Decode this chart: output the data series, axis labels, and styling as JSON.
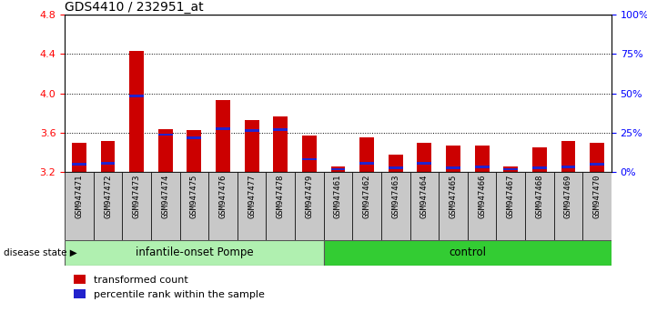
{
  "title": "GDS4410 / 232951_at",
  "samples": [
    "GSM947471",
    "GSM947472",
    "GSM947473",
    "GSM947474",
    "GSM947475",
    "GSM947476",
    "GSM947477",
    "GSM947478",
    "GSM947479",
    "GSM947461",
    "GSM947462",
    "GSM947463",
    "GSM947464",
    "GSM947465",
    "GSM947466",
    "GSM947467",
    "GSM947468",
    "GSM947469",
    "GSM947470"
  ],
  "red_values": [
    3.5,
    3.52,
    4.43,
    3.64,
    3.63,
    3.93,
    3.73,
    3.77,
    3.57,
    3.26,
    3.55,
    3.38,
    3.5,
    3.47,
    3.47,
    3.26,
    3.45,
    3.52,
    3.5
  ],
  "blue_positions": [
    3.27,
    3.28,
    3.96,
    3.57,
    3.54,
    3.63,
    3.61,
    3.62,
    3.32,
    3.22,
    3.28,
    3.23,
    3.28,
    3.23,
    3.24,
    3.22,
    3.23,
    3.24,
    3.27
  ],
  "blue_heights": [
    0.025,
    0.025,
    0.025,
    0.025,
    0.025,
    0.025,
    0.025,
    0.025,
    0.025,
    0.025,
    0.025,
    0.025,
    0.025,
    0.025,
    0.025,
    0.025,
    0.025,
    0.025,
    0.025
  ],
  "group_labels": [
    "infantile-onset Pompe",
    "control"
  ],
  "group_sizes": [
    9,
    10
  ],
  "group_colors_light": "#b0f0b0",
  "group_colors_dark": "#33cc33",
  "ylim_left": [
    3.2,
    4.8
  ],
  "yticks_left": [
    3.2,
    3.6,
    4.0,
    4.4,
    4.8
  ],
  "ylim_right": [
    0,
    100
  ],
  "yticks_right": [
    0,
    25,
    50,
    75,
    100
  ],
  "yticklabels_right": [
    "0%",
    "25%",
    "50%",
    "75%",
    "100%"
  ],
  "bar_color": "#cc0000",
  "blue_color": "#2222cc",
  "gray_bg": "#c8c8c8",
  "legend_label_red": "transformed count",
  "legend_label_blue": "percentile rank within the sample",
  "disease_state_label": "disease state",
  "bar_width": 0.5
}
